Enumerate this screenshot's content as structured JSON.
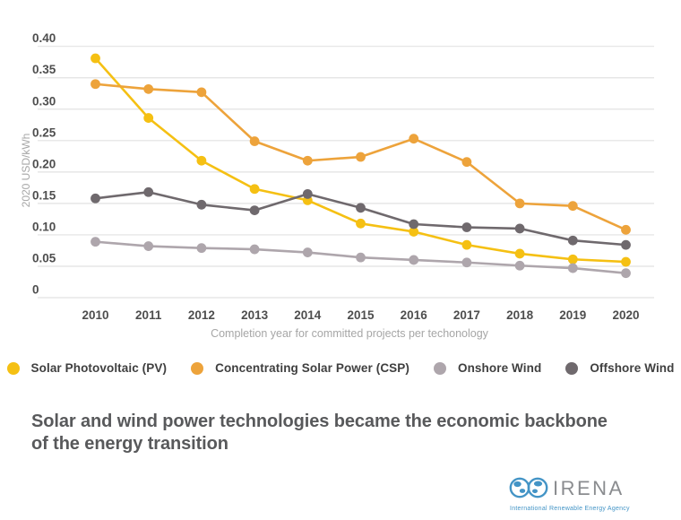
{
  "chart_data": {
    "type": "line",
    "x_tick_labels": [
      "2010",
      "2011",
      "2012",
      "2013",
      "2014",
      "2015",
      "2016",
      "2017",
      "2018",
      "2019",
      "2020"
    ],
    "series": [
      {
        "name": "Solar Photovoltaic (PV)",
        "color": "#F5C013",
        "values": [
          0.381,
          0.286,
          0.218,
          0.173,
          0.155,
          0.118,
          0.105,
          0.084,
          0.07,
          0.061,
          0.057
        ]
      },
      {
        "name": "Concentrating Solar Power (CSP)",
        "color": "#EDA33B",
        "values": [
          0.34,
          0.332,
          0.327,
          0.249,
          0.218,
          0.224,
          0.253,
          0.216,
          0.15,
          0.146,
          0.108
        ]
      },
      {
        "name": "Onshore Wind",
        "color": "#AEA6AC",
        "values": [
          0.089,
          0.082,
          0.079,
          0.077,
          0.072,
          0.064,
          0.06,
          0.056,
          0.051,
          0.047,
          0.039
        ]
      },
      {
        "name": "Offshore Wind",
        "color": "#6F696D",
        "values": [
          0.158,
          0.168,
          0.148,
          0.139,
          0.165,
          0.143,
          0.117,
          0.112,
          0.11,
          0.091,
          0.084
        ]
      }
    ],
    "ylabel": "2020 USD/kWh",
    "xlabel": "Completion year for committed projects per techonology",
    "ylim": [
      0,
      0.4
    ],
    "y_ticks": [
      0,
      0.05,
      0.1,
      0.15,
      0.2,
      0.25,
      0.3,
      0.35,
      0.4
    ],
    "y_tick_labels": [
      "0",
      "0.05",
      "0.10",
      "0.15",
      "0.20",
      "0.25",
      "0.30",
      "0.35",
      "0.40"
    ],
    "grid": true,
    "legend_position": "bottom",
    "grid_color": "#E2E2E2",
    "tick_label_color": "#4E4E4E",
    "axis_title_color": "#A6A6A6"
  },
  "caption": {
    "line1": "Solar and wind power technologies became the economic backbone",
    "line2": "of the energy transition"
  },
  "logo": {
    "name": "IRENA",
    "tagline": "International Renewable Energy Agency",
    "blue": "#4394C6",
    "wordmark_color": "#8A8C8F"
  }
}
